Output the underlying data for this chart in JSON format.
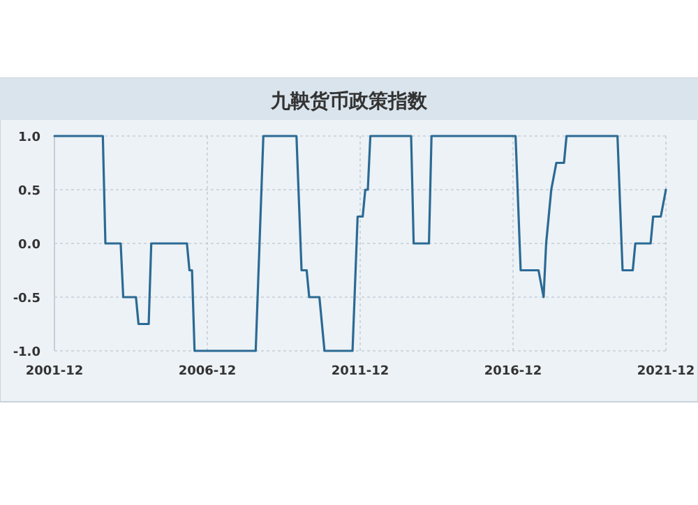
{
  "chart_data": {
    "type": "line",
    "title": "九鞅货币政策指数",
    "color": "#2b6a94",
    "grid": true,
    "x": [
      "2001-12",
      "2003-07",
      "2003-08",
      "2004-02",
      "2004-03",
      "2004-08",
      "2004-09",
      "2005-01",
      "2005-02",
      "2006-04",
      "2006-05",
      "2006-06",
      "2006-07",
      "2008-07",
      "2008-10",
      "2009-11",
      "2010-01",
      "2010-03",
      "2010-04",
      "2010-08",
      "2010-10",
      "2011-09",
      "2011-11",
      "2012-01",
      "2012-02",
      "2012-03",
      "2012-04",
      "2013-08",
      "2013-09",
      "2014-03",
      "2014-04",
      "2017-01",
      "2017-03",
      "2017-10",
      "2017-12",
      "2018-01",
      "2018-02",
      "2018-03",
      "2018-05",
      "2018-08",
      "2018-09",
      "2020-05",
      "2020-07",
      "2020-11",
      "2020-12",
      "2021-06",
      "2021-07",
      "2021-10",
      "2021-12"
    ],
    "values": [
      1,
      1,
      0,
      0,
      -0.5,
      -0.5,
      -0.75,
      -0.75,
      0,
      0,
      -0.25,
      -0.25,
      -1,
      -1,
      1,
      1,
      -0.25,
      -0.25,
      -0.5,
      -0.5,
      -1,
      -1,
      0.25,
      0.25,
      0.5,
      0.5,
      1,
      1,
      0,
      0,
      1,
      1,
      -0.25,
      -0.25,
      -0.5,
      0,
      0.25,
      0.5,
      0.75,
      0.75,
      1,
      1,
      -0.25,
      -0.25,
      0,
      0,
      0.25,
      0.25,
      0.5
    ],
    "xlim": [
      "2001-12",
      "2021-12"
    ],
    "xticks": [
      "2001-12",
      "2006-12",
      "2011-12",
      "2016-12",
      "2021-12"
    ],
    "ylim": [
      -1.0,
      1.0
    ],
    "yticks": [
      {
        "value": -1,
        "label": "-1.0"
      },
      {
        "value": -0.5,
        "label": "-0.5"
      },
      {
        "value": 0,
        "label": "0.0"
      },
      {
        "value": 0.5,
        "label": "0.5"
      },
      {
        "value": 1,
        "label": "1.0"
      }
    ]
  }
}
